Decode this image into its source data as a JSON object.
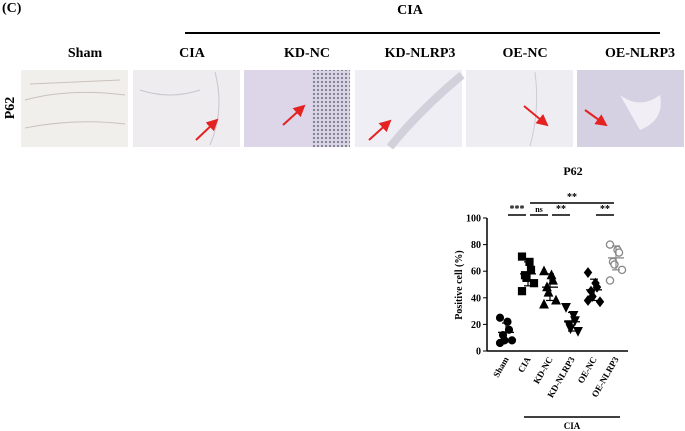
{
  "panel_label": "(C)",
  "group_header": "CIA",
  "columns": [
    "Sham",
    "CIA",
    "KD-NC",
    "KD-NLRP3",
    "OE-NC",
    "OE-NLRP3"
  ],
  "row_label": "P62",
  "chart_data": {
    "type": "dotplot",
    "title": "P62",
    "y_label": "Positive cell (%)",
    "categories": [
      "Sham",
      "CIA",
      "KD-NC",
      "KD-NLRP3",
      "OE-NC",
      "OE-NLRP3"
    ],
    "values": [
      [
        25,
        22,
        16,
        12,
        8,
        8,
        6
      ],
      [
        71,
        67,
        61,
        57,
        55,
        51,
        45
      ],
      [
        60,
        57,
        53,
        48,
        44,
        38,
        35
      ],
      [
        33,
        27,
        23,
        20,
        17,
        15
      ],
      [
        59,
        51,
        48,
        45,
        41,
        37,
        38
      ],
      [
        80,
        76,
        74,
        67,
        65,
        61,
        53
      ]
    ],
    "means": [
      14,
      58,
      48,
      22,
      46,
      70
    ],
    "sds": [
      7,
      9,
      10,
      7,
      8,
      9
    ],
    "markers": [
      "circle",
      "square",
      "triangle-up",
      "triangle-down",
      "diamond",
      "open-circle"
    ],
    "colors": [
      "#000000",
      "#000000",
      "#000000",
      "#000000",
      "#000000",
      "#888888"
    ],
    "ylim": [
      0,
      100
    ],
    "yticks": [
      0,
      20,
      40,
      60,
      80,
      100
    ],
    "significance": [
      {
        "label": "***",
        "from": 0,
        "to": 1
      },
      {
        "label": "ns",
        "from": 1,
        "to": 2
      },
      {
        "label": "**",
        "from": 2,
        "to": 3
      },
      {
        "label": "**",
        "from": 4,
        "to": 5
      },
      {
        "label": "**",
        "from": 1,
        "to": 5
      }
    ],
    "group": {
      "label": "CIA",
      "from": 1,
      "to": 5
    }
  }
}
